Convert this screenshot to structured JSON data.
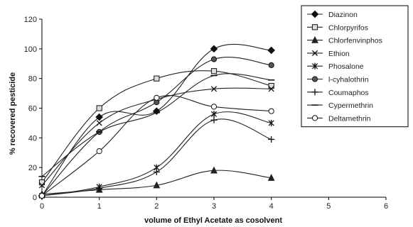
{
  "chart_data": {
    "type": "line",
    "title": "",
    "xlabel": "volume of Ethyl Acetate as cosolvent",
    "ylabel": "% recovered pesticide",
    "xlim": [
      0,
      6
    ],
    "ylim": [
      0,
      120
    ],
    "xticks": [
      "0",
      "1",
      "2",
      "3",
      "4",
      "5",
      "6"
    ],
    "yticks": [
      "0",
      "20",
      "40",
      "60",
      "80",
      "100",
      "120"
    ],
    "grid": false,
    "legend_position": "right",
    "x": [
      0,
      1,
      2,
      3,
      4
    ],
    "series": [
      {
        "name": "Diazinon",
        "marker": "diamond",
        "values": [
          1,
          54,
          58,
          100,
          99
        ]
      },
      {
        "name": "Chlorpyrifos",
        "marker": "square",
        "values": [
          10,
          60,
          80,
          85,
          75
        ]
      },
      {
        "name": "Chlorfenvinphos",
        "marker": "triangle",
        "values": [
          2,
          5,
          8,
          18,
          13
        ]
      },
      {
        "name": "Ethion",
        "marker": "x",
        "values": [
          8,
          50,
          66,
          73,
          73
        ]
      },
      {
        "name": "Phosalone",
        "marker": "star",
        "values": [
          1,
          7,
          20,
          56,
          50
        ]
      },
      {
        "name": "l-cyhalothrin",
        "marker": "circle-filled",
        "values": [
          1,
          44,
          64,
          93,
          89
        ]
      },
      {
        "name": "Coumaphos",
        "marker": "plus",
        "values": [
          1,
          6,
          17,
          52,
          39
        ]
      },
      {
        "name": "Cypermethrin",
        "marker": "dash",
        "values": [
          14,
          44,
          57,
          82,
          79
        ]
      },
      {
        "name": "Deltamethrin",
        "marker": "circle-open",
        "values": [
          1,
          31,
          67,
          61,
          58
        ]
      }
    ]
  }
}
